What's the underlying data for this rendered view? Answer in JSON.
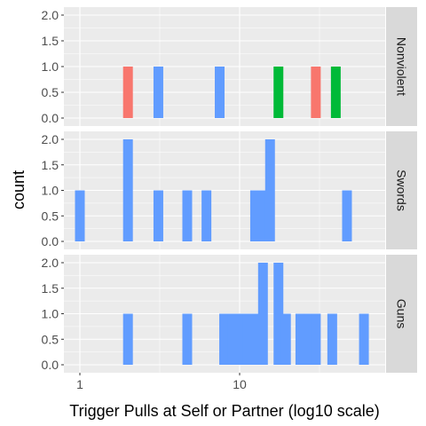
{
  "chart_data": {
    "type": "bar",
    "xlabel": "Trigger Pulls at Self or Partner (log10 scale)",
    "ylabel": "count",
    "x_scale": "log10",
    "xlim": [
      0.8,
      100
    ],
    "ylim": [
      0,
      2
    ],
    "x_ticks": [
      {
        "value": 1,
        "label": "1"
      },
      {
        "value": 10,
        "label": "10"
      }
    ],
    "y_ticks": [
      {
        "value": 0,
        "label": "0.0"
      },
      {
        "value": 0.5,
        "label": "0.5"
      },
      {
        "value": 1,
        "label": "1.0"
      },
      {
        "value": 1.5,
        "label": "1.5"
      },
      {
        "value": 2,
        "label": "2.0"
      }
    ],
    "grid": true,
    "colors": {
      "panel_bg": "#ebebeb",
      "grid_major": "#ffffff",
      "strip_bg": "#d9d9d9",
      "red": "#f8766d",
      "green": "#00ba38",
      "blue": "#619cff"
    },
    "facets": [
      {
        "label": "Nonviolent",
        "bars": [
          {
            "x": 2.0,
            "count": 1,
            "color": "red"
          },
          {
            "x": 3.1,
            "count": 1,
            "color": "blue"
          },
          {
            "x": 7.5,
            "count": 1,
            "color": "blue"
          },
          {
            "x": 17.5,
            "count": 1,
            "color": "green"
          },
          {
            "x": 30,
            "count": 1,
            "color": "red"
          },
          {
            "x": 40,
            "count": 1,
            "color": "green"
          }
        ]
      },
      {
        "label": "Swords",
        "bars": [
          {
            "x": 1.0,
            "count": 1,
            "color": "blue"
          },
          {
            "x": 2.0,
            "count": 2,
            "color": "blue"
          },
          {
            "x": 3.1,
            "count": 1,
            "color": "blue"
          },
          {
            "x": 4.7,
            "count": 1,
            "color": "blue"
          },
          {
            "x": 6.2,
            "count": 1,
            "color": "blue"
          },
          {
            "x": 12.5,
            "count": 1,
            "color": "blue"
          },
          {
            "x": 14.0,
            "count": 1,
            "color": "blue"
          },
          {
            "x": 15.5,
            "count": 2,
            "color": "blue"
          },
          {
            "x": 47,
            "count": 1,
            "color": "blue"
          }
        ]
      },
      {
        "label": "Guns",
        "bars": [
          {
            "x": 2.0,
            "count": 1,
            "color": "blue"
          },
          {
            "x": 4.7,
            "count": 1,
            "color": "blue"
          },
          {
            "x": 8.0,
            "count": 1,
            "color": "blue"
          },
          {
            "x": 9.0,
            "count": 1,
            "color": "blue"
          },
          {
            "x": 10.0,
            "count": 1,
            "color": "blue"
          },
          {
            "x": 11.2,
            "count": 1,
            "color": "blue"
          },
          {
            "x": 12.5,
            "count": 1,
            "color": "blue"
          },
          {
            "x": 14.0,
            "count": 2,
            "color": "blue"
          },
          {
            "x": 17.5,
            "count": 2,
            "color": "blue"
          },
          {
            "x": 19.5,
            "count": 1,
            "color": "blue"
          },
          {
            "x": 24,
            "count": 1,
            "color": "blue"
          },
          {
            "x": 27,
            "count": 1,
            "color": "blue"
          },
          {
            "x": 30,
            "count": 1,
            "color": "blue"
          },
          {
            "x": 38,
            "count": 1,
            "color": "blue"
          },
          {
            "x": 60,
            "count": 1,
            "color": "blue"
          }
        ]
      }
    ]
  }
}
